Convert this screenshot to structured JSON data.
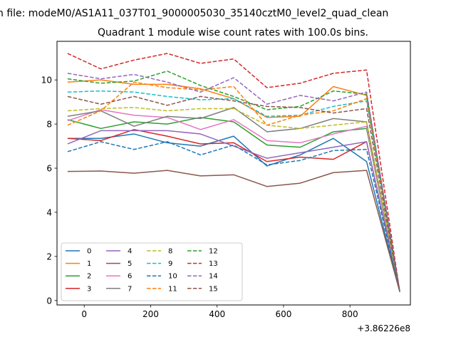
{
  "figure": {
    "suptitle": "n file: modeM0/AS1A11_037T01_9000005030_35140cztM0_level2_quad_clean",
    "background": "#ffffff"
  },
  "chart_data": {
    "type": "line",
    "title": "Quadrant 1 module wise count rates with 100.0s bins.",
    "xlabel": "",
    "ylabel": "",
    "x_offset_label": "+3.86226e8",
    "x": [
      -50,
      50,
      150,
      250,
      350,
      450,
      550,
      650,
      750,
      850,
      950
    ],
    "xlim": [
      -82,
      982
    ],
    "ylim": [
      -0.2,
      11.75
    ],
    "x_ticks": [
      0,
      200,
      400,
      600,
      800
    ],
    "y_ticks": [
      0,
      2,
      4,
      6,
      8,
      10
    ],
    "grid": false,
    "legend_position": "lower-left",
    "legend_columns": 4,
    "series": [
      {
        "name": "0",
        "color": "#1f77b4",
        "dash": "solid",
        "values": [
          7.35,
          7.35,
          7.55,
          7.15,
          7.0,
          7.45,
          6.1,
          6.6,
          7.35,
          6.3,
          0.4
        ]
      },
      {
        "name": "1",
        "color": "#ff7f0e",
        "dash": "solid",
        "values": [
          9.9,
          10.0,
          9.8,
          9.8,
          9.6,
          9.15,
          8.3,
          8.35,
          9.7,
          9.3,
          0.4
        ]
      },
      {
        "name": "2",
        "color": "#2ca02c",
        "dash": "solid",
        "values": [
          8.2,
          7.8,
          8.1,
          8.0,
          8.3,
          8.1,
          7.05,
          6.95,
          7.65,
          7.8,
          0.4
        ]
      },
      {
        "name": "3",
        "color": "#d62728",
        "dash": "solid",
        "values": [
          7.35,
          7.25,
          7.75,
          7.45,
          7.1,
          7.15,
          6.3,
          6.5,
          6.4,
          7.2,
          0.4
        ]
      },
      {
        "name": "4",
        "color": "#9467bd",
        "dash": "solid",
        "values": [
          7.1,
          7.7,
          7.7,
          7.7,
          7.55,
          7.0,
          6.45,
          6.7,
          6.95,
          7.2,
          0.4
        ]
      },
      {
        "name": "5",
        "color": "#8c564b",
        "dash": "solid",
        "values": [
          5.85,
          5.87,
          5.77,
          5.9,
          5.65,
          5.7,
          5.17,
          5.32,
          5.8,
          5.9,
          0.4
        ]
      },
      {
        "name": "6",
        "color": "#e377c2",
        "dash": "solid",
        "values": [
          8.15,
          8.65,
          8.4,
          8.3,
          7.75,
          8.2,
          7.25,
          7.15,
          7.55,
          7.9,
          0.4
        ]
      },
      {
        "name": "7",
        "color": "#7f7f7f",
        "dash": "solid",
        "values": [
          8.35,
          8.6,
          7.9,
          8.35,
          8.25,
          8.75,
          7.65,
          7.8,
          8.25,
          8.1,
          0.4
        ]
      },
      {
        "name": "8",
        "color": "#bcbd22",
        "dash": "dashed",
        "values": [
          8.6,
          8.7,
          8.75,
          8.6,
          8.7,
          8.7,
          7.95,
          7.8,
          7.95,
          8.1,
          0.4
        ]
      },
      {
        "name": "9",
        "color": "#17becf",
        "dash": "dashed",
        "values": [
          9.45,
          9.5,
          9.45,
          9.25,
          9.1,
          9.15,
          8.35,
          8.4,
          8.8,
          9.05,
          0.4
        ]
      },
      {
        "name": "10",
        "color": "#1f77b4",
        "dash": "dashed",
        "values": [
          6.75,
          7.2,
          6.85,
          7.2,
          6.6,
          7.05,
          6.15,
          6.35,
          6.8,
          6.85,
          0.4
        ]
      },
      {
        "name": "11",
        "color": "#ff7f0e",
        "dash": "dashed",
        "values": [
          7.95,
          8.6,
          9.9,
          9.65,
          9.55,
          9.7,
          7.95,
          8.4,
          8.6,
          9.15,
          0.4
        ]
      },
      {
        "name": "12",
        "color": "#2ca02c",
        "dash": "dashed",
        "values": [
          10.05,
          9.85,
          9.95,
          10.4,
          9.75,
          9.25,
          8.65,
          8.8,
          9.5,
          9.35,
          0.4
        ]
      },
      {
        "name": "13",
        "color": "#d62728",
        "dash": "dashed",
        "values": [
          11.2,
          10.5,
          10.9,
          11.2,
          10.75,
          10.95,
          9.65,
          9.85,
          10.3,
          10.45,
          0.4
        ]
      },
      {
        "name": "14",
        "color": "#9467bd",
        "dash": "dashed",
        "values": [
          10.3,
          10.05,
          10.25,
          9.9,
          9.45,
          10.1,
          8.9,
          9.3,
          9.05,
          9.45,
          0.4
        ]
      },
      {
        "name": "15",
        "color": "#8c564b",
        "dash": "dashed",
        "values": [
          9.25,
          8.9,
          9.25,
          8.85,
          9.25,
          9.05,
          8.8,
          8.75,
          8.5,
          8.7,
          0.4
        ]
      }
    ]
  }
}
